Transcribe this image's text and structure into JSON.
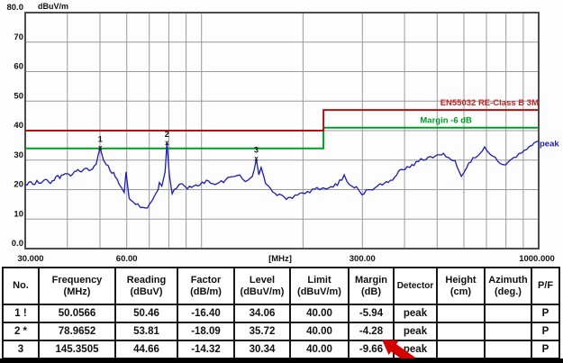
{
  "chart_data": {
    "type": "line",
    "title": "",
    "x_scale": "log",
    "xlabel_unit": "[MHz]",
    "ylabel_unit": "dBuV/m",
    "x_range_mhz": [
      30,
      1000
    ],
    "y_range": [
      0,
      80
    ],
    "grid": true,
    "y_ticks": [
      {
        "v": 80,
        "label": "80.0"
      },
      {
        "v": 70,
        "label": "70"
      },
      {
        "v": 60,
        "label": "60"
      },
      {
        "v": 50,
        "label": "50"
      },
      {
        "v": 40,
        "label": "40"
      },
      {
        "v": 30,
        "label": "30"
      },
      {
        "v": 20,
        "label": "20"
      },
      {
        "v": 10,
        "label": "10"
      },
      {
        "v": 0,
        "label": "0.0"
      }
    ],
    "x_ticks": [
      {
        "f": 30,
        "label": "30.000"
      },
      {
        "f": 60,
        "label": "60.00"
      },
      {
        "f": 300,
        "label": "300.00"
      },
      {
        "f": 1000,
        "label": "1000.000"
      }
    ],
    "x_gridlines": [
      40,
      50,
      60,
      70,
      80,
      90,
      100,
      200,
      300,
      400,
      500,
      600,
      700,
      800,
      900
    ],
    "y_gridlines": [
      10,
      20,
      30,
      40,
      50,
      60,
      70
    ],
    "limit_line": {
      "label": "EN55032 RE-Class B 3M",
      "color": "#a81414",
      "label_color": "#c42222",
      "points": [
        [
          30,
          40
        ],
        [
          230,
          40
        ],
        [
          230,
          47
        ],
        [
          1000,
          47
        ]
      ]
    },
    "margin_line": {
      "label": "Margin -6 dB",
      "color": "#009c28",
      "label_color": "#009c28",
      "points": [
        [
          30,
          34
        ],
        [
          230,
          34
        ],
        [
          230,
          41
        ],
        [
          1000,
          41
        ]
      ]
    },
    "trace": {
      "name": "peak",
      "color": "#1c1cb4",
      "points": [
        [
          30,
          21.6
        ],
        [
          30.8,
          22.6
        ],
        [
          31.6,
          21.8
        ],
        [
          32.5,
          23.1
        ],
        [
          33.4,
          22.2
        ],
        [
          34.3,
          23.4
        ],
        [
          35.2,
          22.6
        ],
        [
          36.1,
          23.0
        ],
        [
          37,
          24.4
        ],
        [
          38,
          23.8
        ],
        [
          38.9,
          25.0
        ],
        [
          39.9,
          25.4
        ],
        [
          40.9,
          24.6
        ],
        [
          42,
          26.2
        ],
        [
          43,
          26.8
        ],
        [
          44.1,
          26.0
        ],
        [
          45.2,
          27.2
        ],
        [
          46.4,
          26.4
        ],
        [
          47.5,
          27.0
        ],
        [
          48.7,
          28.6
        ],
        [
          50.06,
          34.06
        ],
        [
          51.2,
          30.0
        ],
        [
          52.2,
          28.4
        ],
        [
          53.5,
          26.6
        ],
        [
          54.9,
          25.8
        ],
        [
          56.2,
          23.6
        ],
        [
          57.6,
          21.0
        ],
        [
          59,
          19.0
        ],
        [
          59.7,
          26.0
        ],
        [
          61,
          17.0
        ],
        [
          61.6,
          16.5
        ],
        [
          63.7,
          15.0
        ],
        [
          65.8,
          14.0
        ],
        [
          68,
          13.8
        ],
        [
          70.2,
          15.2
        ],
        [
          72.5,
          17.8
        ],
        [
          74.4,
          20.0
        ],
        [
          75,
          22.4
        ],
        [
          76.3,
          21.2
        ],
        [
          78,
          26.0
        ],
        [
          78.97,
          35.72
        ],
        [
          80.3,
          25.0
        ],
        [
          81.8,
          18.6
        ],
        [
          84.3,
          20.4
        ],
        [
          87.5,
          22.0
        ],
        [
          90.8,
          20.2
        ],
        [
          94.8,
          21.2
        ],
        [
          99,
          21.6
        ],
        [
          103.4,
          23.2
        ],
        [
          108,
          22.0
        ],
        [
          112.8,
          22.4
        ],
        [
          118,
          23.4
        ],
        [
          123,
          24.4
        ],
        [
          127.6,
          24.8
        ],
        [
          132.3,
          23.6
        ],
        [
          137.4,
          23.2
        ],
        [
          141.4,
          24.4
        ],
        [
          145.35,
          30.34
        ],
        [
          148,
          25.0
        ],
        [
          150.3,
          27.5
        ],
        [
          155,
          22.0
        ],
        [
          160,
          20.5
        ],
        [
          167.5,
          18.0
        ],
        [
          176,
          17.5
        ],
        [
          186,
          17.0
        ],
        [
          196,
          18.8
        ],
        [
          206,
          19.4
        ],
        [
          217,
          20.2
        ],
        [
          230,
          20.6
        ],
        [
          242,
          21.0
        ],
        [
          253,
          21.4
        ],
        [
          265,
          25.0
        ],
        [
          275,
          21.6
        ],
        [
          288,
          21.0
        ],
        [
          299,
          18.3
        ],
        [
          312,
          20.0
        ],
        [
          327,
          20.6
        ],
        [
          344,
          21.6
        ],
        [
          358,
          22.4
        ],
        [
          374,
          24.2
        ],
        [
          390,
          26.8
        ],
        [
          407,
          27.8
        ],
        [
          415,
          27.5
        ],
        [
          433,
          29.5
        ],
        [
          455,
          30.0
        ],
        [
          478,
          31.2
        ],
        [
          500,
          31.8
        ],
        [
          522,
          32.3
        ],
        [
          542,
          30.8
        ],
        [
          565,
          29.8
        ],
        [
          590,
          24.5
        ],
        [
          612,
          27.5
        ],
        [
          638,
          30.8
        ],
        [
          661,
          31.5
        ],
        [
          691,
          34.5
        ],
        [
          717,
          32.0
        ],
        [
          743,
          31.0
        ],
        [
          770,
          28.8
        ],
        [
          799,
          28.4
        ],
        [
          828,
          30.2
        ],
        [
          858,
          31.0
        ],
        [
          890,
          32.4
        ],
        [
          922,
          33.6
        ],
        [
          956,
          35.0
        ],
        [
          1000,
          36.5
        ]
      ]
    },
    "markers": [
      {
        "n": "1",
        "f": 50.0566,
        "level": 34.06
      },
      {
        "n": "2",
        "f": 78.9652,
        "level": 35.72
      },
      {
        "n": "3",
        "f": 145.3505,
        "level": 30.34
      }
    ]
  },
  "table": {
    "headers": [
      {
        "l1": "No.",
        "l2": ""
      },
      {
        "l1": "Frequency",
        "l2": "(MHz)"
      },
      {
        "l1": "Reading",
        "l2": "(dBuV)"
      },
      {
        "l1": "Factor",
        "l2": "(dB/m)"
      },
      {
        "l1": "Level",
        "l2": "(dBuV/m)"
      },
      {
        "l1": "Limit",
        "l2": "(dBuV/m)"
      },
      {
        "l1": "Margin",
        "l2": "(dB)"
      },
      {
        "l1": "Detector",
        "l2": ""
      },
      {
        "l1": "Height",
        "l2": "(cm)"
      },
      {
        "l1": "Azimuth",
        "l2": "(deg.)"
      },
      {
        "l1": "P/F",
        "l2": ""
      }
    ],
    "rows": [
      [
        "1 !",
        "50.0566",
        "50.46",
        "-16.40",
        "34.06",
        "40.00",
        "-5.94",
        "peak",
        "",
        "",
        "P"
      ],
      [
        "2 *",
        "78.9652",
        "53.81",
        "-18.09",
        "35.72",
        "40.00",
        "-4.28",
        "peak",
        "",
        "",
        "P"
      ],
      [
        "3",
        "145.3505",
        "44.66",
        "-14.32",
        "30.34",
        "40.00",
        "-9.66",
        "peak",
        "",
        "",
        "P"
      ]
    ]
  },
  "annotation": {
    "arrow_color": "#d40000"
  }
}
